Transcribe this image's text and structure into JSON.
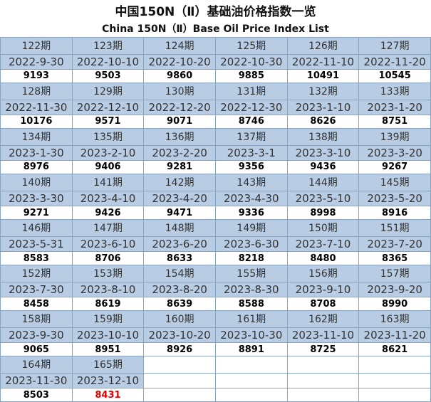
{
  "header": {
    "title": "中国150N（Ⅱ）基础油价格指数一览",
    "subtitle": "China 150N（Ⅱ）Base Oil Price Index List"
  },
  "table": {
    "groups": [
      [
        {
          "period": "122期",
          "date": "2022-9-30",
          "value": 9193
        },
        {
          "period": "123期",
          "date": "2022-10-10",
          "value": 9503
        },
        {
          "period": "124期",
          "date": "2022-10-20",
          "value": 9860
        },
        {
          "period": "125期",
          "date": "2022-10-30",
          "value": 9885
        },
        {
          "period": "126期",
          "date": "2022-11-10",
          "value": 10491
        },
        {
          "period": "127期",
          "date": "2022-11-20",
          "value": 10545
        }
      ],
      [
        {
          "period": "128期",
          "date": "2022-11-30",
          "value": 10176
        },
        {
          "period": "129期",
          "date": "2022-12-10",
          "value": 9571
        },
        {
          "period": "130期",
          "date": "2022-12-20",
          "value": 9071
        },
        {
          "period": "131期",
          "date": "2022-12-30",
          "value": 8746
        },
        {
          "period": "132期",
          "date": "2023-1-10",
          "value": 8626
        },
        {
          "period": "133期",
          "date": "2023-1-20",
          "value": 8751
        }
      ],
      [
        {
          "period": "134期",
          "date": "2023-1-30",
          "value": 8976
        },
        {
          "period": "135期",
          "date": "2023-2-10",
          "value": 9406
        },
        {
          "period": "136期",
          "date": "2023-2-20",
          "value": 9281
        },
        {
          "period": "137期",
          "date": "2023-3-1",
          "value": 9356
        },
        {
          "period": "138期",
          "date": "2023-3-10",
          "value": 9436
        },
        {
          "period": "139期",
          "date": "2023-3-20",
          "value": 9267
        }
      ],
      [
        {
          "period": "140期",
          "date": "2023-3-30",
          "value": 9271
        },
        {
          "period": "141期",
          "date": "2023-4-10",
          "value": 9426
        },
        {
          "period": "142期",
          "date": "2023-4-20",
          "value": 9471
        },
        {
          "period": "143期",
          "date": "2023-4-30",
          "value": 9336
        },
        {
          "period": "144期",
          "date": "2023-5-10",
          "value": 8998
        },
        {
          "period": "145期",
          "date": "2023-5-20",
          "value": 8916
        }
      ],
      [
        {
          "period": "146期",
          "date": "2023-5-31",
          "value": 8583
        },
        {
          "period": "147期",
          "date": "2023-6-10",
          "value": 8706
        },
        {
          "period": "148期",
          "date": "2023-6-20",
          "value": 8633
        },
        {
          "period": "149期",
          "date": "2023-6-30",
          "value": 8218
        },
        {
          "period": "150期",
          "date": "2023-7-10",
          "value": 8480
        },
        {
          "period": "151期",
          "date": "2023-7-20",
          "value": 8365
        }
      ],
      [
        {
          "period": "152期",
          "date": "2023-7-30",
          "value": 8458
        },
        {
          "period": "153期",
          "date": "2023-8-10",
          "value": 8619
        },
        {
          "period": "154期",
          "date": "2023-8-20",
          "value": 8639
        },
        {
          "period": "155期",
          "date": "2023-8-30",
          "value": 8588
        },
        {
          "period": "156期",
          "date": "2023-9-10",
          "value": 8708
        },
        {
          "period": "157期",
          "date": "2023-9-20",
          "value": 8990
        }
      ],
      [
        {
          "period": "158期",
          "date": "2023-9-30",
          "value": 9065
        },
        {
          "period": "159期",
          "date": "2023-10-10",
          "value": 8951
        },
        {
          "period": "160期",
          "date": "2023-10-20",
          "value": 8926
        },
        {
          "period": "161期",
          "date": "2023-10-30",
          "value": 8891
        },
        {
          "period": "162期",
          "date": "2023-11-10",
          "value": 8725
        },
        {
          "period": "163期",
          "date": "2023-11-20",
          "value": 8621
        }
      ],
      [
        {
          "period": "164期",
          "date": "2023-11-30",
          "value": 8503
        },
        {
          "period": "165期",
          "date": "2023-12-10",
          "value": 8431
        }
      ]
    ]
  }
}
